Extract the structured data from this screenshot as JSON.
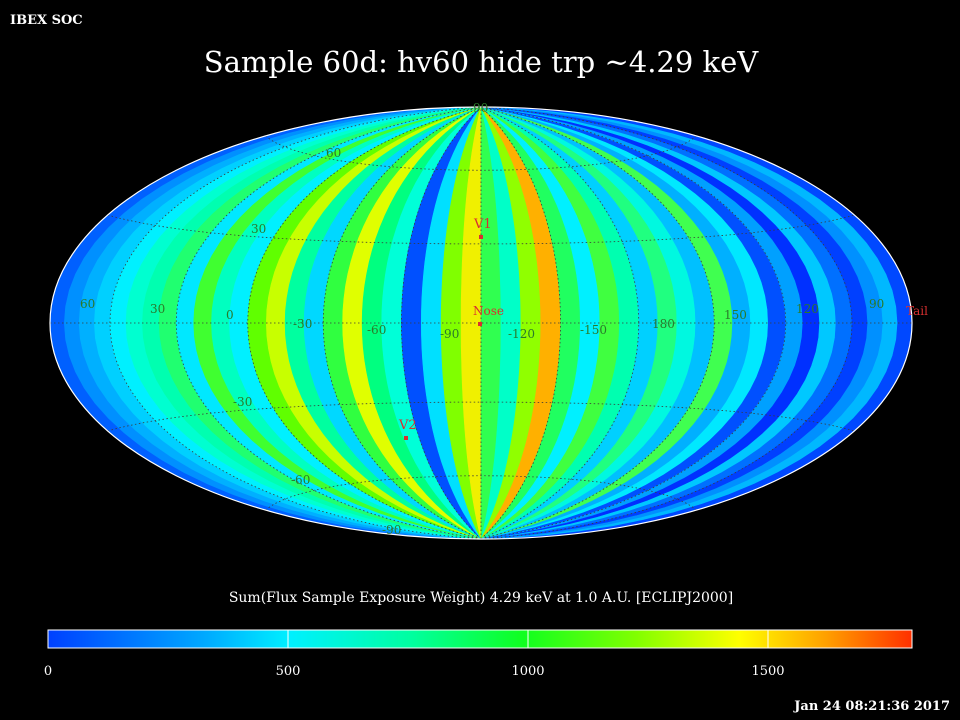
{
  "header": {
    "source_label": "IBEX SOC",
    "title": "Sample 60d: hv60 hide trp ~4.29 keV"
  },
  "map": {
    "projection": "Hammer-Aitoff, ecliptic J2000",
    "longitude_labels": [
      "60",
      "30",
      "0",
      "-30",
      "-60",
      "-90",
      "-120",
      "-150",
      "180",
      "150",
      "120",
      "90"
    ],
    "latitude_labels_top": [
      "60",
      "30"
    ],
    "latitude_labels_bottom": [
      "-30",
      "-60"
    ],
    "pole_top_label": "90",
    "pole_bottom_label": "-90",
    "markers": {
      "v1": "V1",
      "nose": "Nose",
      "v2": "V2",
      "tail": "Tail"
    },
    "colors": {
      "background": "#000000",
      "label_color": "#2a7a2a",
      "marker_color": "#d83030",
      "grid_color": "#404040",
      "rim_color": "#ffffff"
    }
  },
  "colorbar": {
    "caption": "Sum(Flux Sample Exposure Weight)  4.29 keV at 1.0 A.U. [ECLIPJ2000]",
    "min": 0,
    "max": 1800,
    "tick_labels": [
      "0",
      "500",
      "1000",
      "1500"
    ],
    "stops": [
      "#0040ff",
      "#00e0ff",
      "#00ff80",
      "#40ff00",
      "#ffff00",
      "#ff4000"
    ]
  },
  "footer": {
    "timestamp": "Jan 24 08:21:36 2017"
  }
}
